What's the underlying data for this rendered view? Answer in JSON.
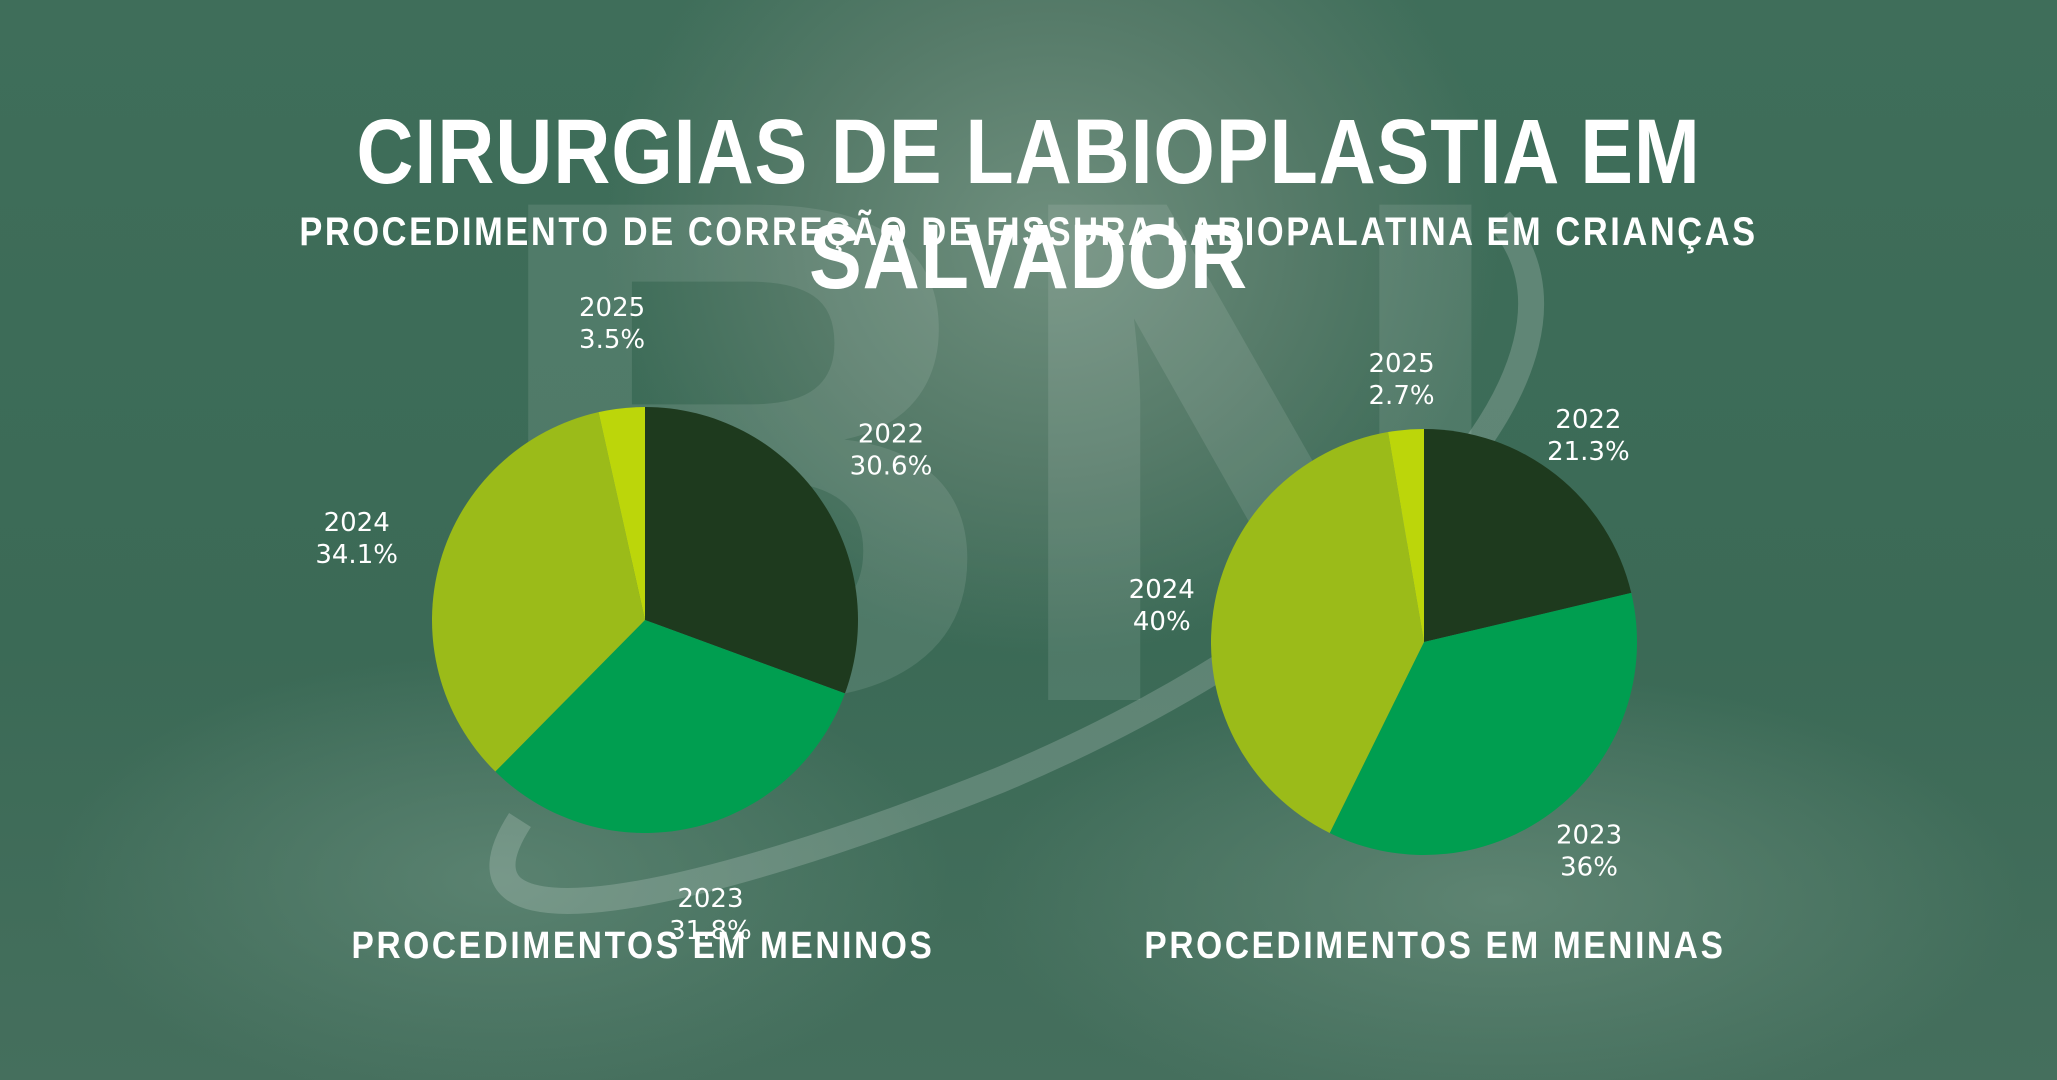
{
  "title": "CIRURGIAS DE LABIOPLASTIA EM SALVADOR",
  "subtitle": "PROCEDIMENTO DE CORREÇÃO DE FISSURA LABIOPALATINA EM CRIANÇAS",
  "watermark": "BN",
  "colors": {
    "2022": "#1e3a1e",
    "2023": "#009e50",
    "2024": "#9bbb19",
    "2025": "#bcd60a"
  },
  "chart_data": [
    {
      "type": "pie",
      "title": "PROCEDIMENTOS EM MENINOS",
      "categories": [
        "2022",
        "2023",
        "2024",
        "2025"
      ],
      "values": [
        30.6,
        31.8,
        34.1,
        3.5
      ],
      "labels": [
        "30.6%",
        "31.8%",
        "34.1%",
        "3.5%"
      ]
    },
    {
      "type": "pie",
      "title": "PROCEDIMENTOS EM MENINAS",
      "categories": [
        "2022",
        "2023",
        "2024",
        "2025"
      ],
      "values": [
        21.3,
        36,
        40,
        2.7
      ],
      "labels": [
        "21.3%",
        "36%",
        "40%",
        "2.7%"
      ]
    }
  ]
}
